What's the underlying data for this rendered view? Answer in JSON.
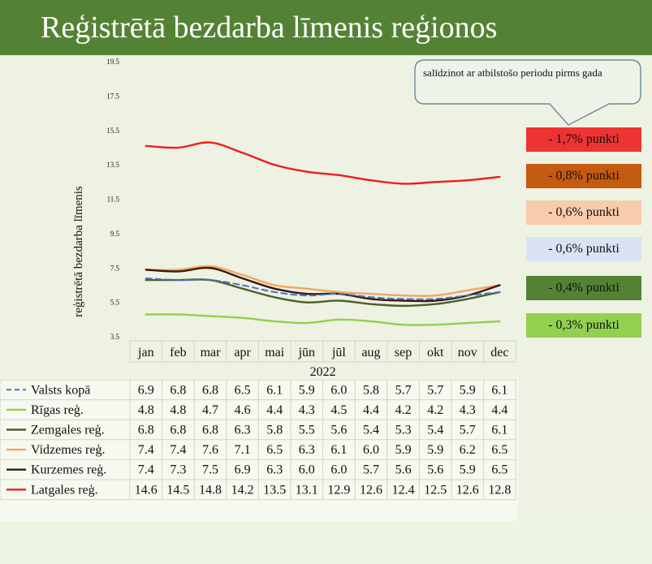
{
  "title": "Reģistrētā bezdarba līmenis reģionos",
  "callout": "salīdzinot ar atbilstošo periodu pirms gada",
  "badges": [
    {
      "label": "- 1,7% punkti",
      "color": "#ee3333",
      "text_color": "#111111"
    },
    {
      "label": "- 0,8% punkti",
      "color": "#c55a11",
      "text_color": "#111111"
    },
    {
      "label": "- 0,6% punkti",
      "color": "#f8cbad",
      "text_color": "#111111"
    },
    {
      "label": "- 0,6% punkti",
      "color": "#dae3f3",
      "text_color": "#111111"
    },
    {
      "label": "- 0,4% punkti",
      "color": "#548235",
      "text_color": "#111111"
    },
    {
      "label": "- 0,3% punkti",
      "color": "#92d050",
      "text_color": "#111111"
    }
  ],
  "chart_data": {
    "type": "line",
    "title": "Reģistrētā bezdarba līmenis reģionos",
    "ylabel": "reģistrētā bezdarba līmenis",
    "xlabel": "2022",
    "ylim": [
      3.5,
      19.5
    ],
    "yticks": [
      "3.5",
      "5.5",
      "7.5",
      "9.5",
      "11.5",
      "13.5",
      "15.5",
      "17.5",
      "19.5"
    ],
    "grid": false,
    "legend": "data-table-below",
    "categories": [
      "jan",
      "feb",
      "mar",
      "apr",
      "mai",
      "jūn",
      "jūl",
      "aug",
      "sep",
      "okt",
      "nov",
      "dec"
    ],
    "series": [
      {
        "name": "Valsts kopā",
        "color": "#4472c4",
        "dashed": true,
        "values": [
          6.9,
          6.8,
          6.8,
          6.5,
          6.1,
          5.9,
          6.0,
          5.8,
          5.7,
          5.7,
          5.9,
          6.1
        ],
        "labels": [
          "6.9",
          "6.8",
          "6.8",
          "6.5",
          "6.1",
          "5.9",
          "6.0",
          "5.8",
          "5.7",
          "5.7",
          "5.9",
          "6.1"
        ]
      },
      {
        "name": "Rīgas reģ.",
        "color": "#92d050",
        "dashed": false,
        "values": [
          4.8,
          4.8,
          4.7,
          4.6,
          4.4,
          4.3,
          4.5,
          4.4,
          4.2,
          4.2,
          4.3,
          4.4
        ],
        "labels": [
          "4.8",
          "4.8",
          "4.7",
          "4.6",
          "4.4",
          "4.3",
          "4.5",
          "4.4",
          "4.2",
          "4.2",
          "4.3",
          "4.4"
        ]
      },
      {
        "name": "Zemgales reģ.",
        "color": "#4e5f2a",
        "dashed": false,
        "values": [
          6.8,
          6.8,
          6.8,
          6.3,
          5.8,
          5.5,
          5.6,
          5.4,
          5.3,
          5.4,
          5.7,
          6.1
        ],
        "labels": [
          "6.8",
          "6.8",
          "6.8",
          "6.3",
          "5.8",
          "5.5",
          "5.6",
          "5.4",
          "5.3",
          "5.4",
          "5.7",
          "6.1"
        ]
      },
      {
        "name": "Vidzemes reģ.",
        "color": "#f4a460",
        "dashed": false,
        "values": [
          7.4,
          7.4,
          7.6,
          7.1,
          6.5,
          6.3,
          6.1,
          6.0,
          5.9,
          5.9,
          6.2,
          6.5
        ],
        "labels": [
          "7.4",
          "7.4",
          "7.6",
          "7.1",
          "6.5",
          "6.3",
          "6.1",
          "6.0",
          "5.9",
          "5.9",
          "6.2",
          "6.5"
        ]
      },
      {
        "name": "Kurzemes reģ.",
        "color": "#3b1a10",
        "dashed": false,
        "values": [
          7.4,
          7.3,
          7.5,
          6.9,
          6.3,
          6.0,
          6.0,
          5.7,
          5.6,
          5.6,
          5.9,
          6.5
        ],
        "labels": [
          "7.4",
          "7.3",
          "7.5",
          "6.9",
          "6.3",
          "6.0",
          "6.0",
          "5.7",
          "5.6",
          "5.6",
          "5.9",
          "6.5"
        ]
      },
      {
        "name": "Latgales reģ.",
        "color": "#ee1c1c",
        "dashed": false,
        "values": [
          14.6,
          14.5,
          14.8,
          14.2,
          13.5,
          13.1,
          12.9,
          12.6,
          12.4,
          12.5,
          12.6,
          12.8
        ],
        "labels": [
          "14.6",
          "14.5",
          "14.8",
          "14.2",
          "13.5",
          "13.1",
          "12.9",
          "12.6",
          "12.4",
          "12.5",
          "12.6",
          "12.8"
        ]
      }
    ]
  }
}
